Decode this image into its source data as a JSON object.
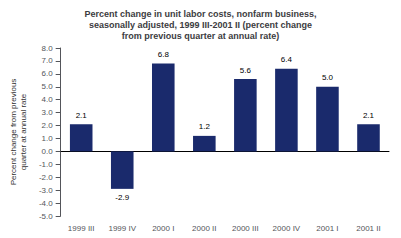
{
  "chart_data": {
    "type": "bar",
    "title": "Percent change in unit labor costs, nonfarm business,\nseasonally adjusted, 1999 III-2001 II (percent change\nfrom previous quarter at annual rate)",
    "ylabel": "Percent change from previous\nquarter at annual rate",
    "categories": [
      "1999 III",
      "1999 IV",
      "2000 I",
      "2000 II",
      "2000 III",
      "2000 IV",
      "2001 I",
      "2001 II"
    ],
    "values": [
      2.1,
      -2.9,
      6.8,
      1.2,
      5.6,
      6.4,
      5.0,
      2.1
    ],
    "value_labels": [
      "2.1",
      "-2.9",
      "6.8",
      "1.2",
      "5.6",
      "6.4",
      "5.0",
      "2.1"
    ],
    "data_labels": true,
    "color": "#1a2a6c",
    "ylim": [
      -5.0,
      8.0
    ],
    "yticks": [
      {
        "value": -5,
        "label": "-5.0"
      },
      {
        "value": -4,
        "label": "-4.0"
      },
      {
        "value": -3,
        "label": "-3.0"
      },
      {
        "value": -2,
        "label": "-2.0"
      },
      {
        "value": -1,
        "label": "-1.0"
      },
      {
        "value": 0,
        "label": "0.0"
      },
      {
        "value": 1,
        "label": "1.0"
      },
      {
        "value": 2,
        "label": "2.0"
      },
      {
        "value": 3,
        "label": "3.0"
      },
      {
        "value": 4,
        "label": "4.0"
      },
      {
        "value": 5,
        "label": "5.0"
      },
      {
        "value": 6,
        "label": "6.0"
      },
      {
        "value": 7,
        "label": "7.0"
      },
      {
        "value": 8,
        "label": "8.0"
      }
    ],
    "grid": false
  }
}
